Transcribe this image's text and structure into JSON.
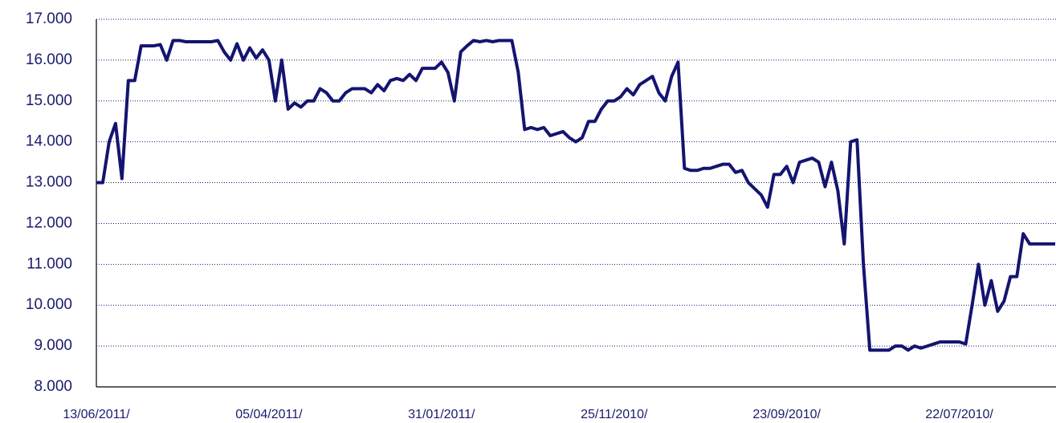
{
  "chart_data": {
    "type": "line",
    "categories": [
      "13/06/2011/",
      null,
      null,
      null,
      null,
      null,
      null,
      null,
      null,
      null,
      null,
      null,
      null,
      null,
      null,
      null,
      null,
      null,
      null,
      null,
      null,
      null,
      null,
      null,
      null,
      null,
      null,
      "05/04/2011/",
      null,
      null,
      null,
      null,
      null,
      null,
      null,
      null,
      null,
      null,
      null,
      null,
      null,
      null,
      null,
      null,
      null,
      null,
      null,
      null,
      null,
      null,
      null,
      null,
      null,
      null,
      "31/01/2011/",
      null,
      null,
      null,
      null,
      null,
      null,
      null,
      null,
      null,
      null,
      null,
      null,
      null,
      null,
      null,
      null,
      null,
      null,
      null,
      null,
      null,
      null,
      null,
      null,
      null,
      null,
      "25/11/2010/",
      null,
      null,
      null,
      null,
      null,
      null,
      null,
      null,
      null,
      null,
      null,
      null,
      null,
      null,
      null,
      null,
      null,
      null,
      null,
      null,
      null,
      null,
      null,
      null,
      null,
      null,
      "23/09/2010/",
      null,
      null,
      null,
      null,
      null,
      null,
      null,
      null,
      null,
      null,
      null,
      null,
      null,
      null,
      null,
      null,
      null,
      null,
      null,
      null,
      null,
      null,
      null,
      null,
      null,
      null,
      "22/07/2010/",
      null,
      null,
      null,
      null,
      null,
      null,
      null,
      null,
      null,
      null,
      null,
      null,
      null,
      null,
      null
    ],
    "series": [
      {
        "color": "#141470",
        "values": [
          13000,
          13000,
          14000,
          14450,
          13100,
          15500,
          15500,
          16350,
          16350,
          16350,
          16380,
          16000,
          16480,
          16480,
          16450,
          16450,
          16450,
          16450,
          16450,
          16480,
          16200,
          16000,
          16400,
          16000,
          16300,
          16050,
          16250,
          16000,
          15000,
          16000,
          14800,
          14950,
          14850,
          15000,
          15000,
          15300,
          15200,
          15000,
          15000,
          15200,
          15300,
          15300,
          15300,
          15200,
          15400,
          15250,
          15500,
          15550,
          15500,
          15650,
          15500,
          15800,
          15800,
          15800,
          15950,
          15700,
          15000,
          16200,
          16350,
          16480,
          16450,
          16480,
          16450,
          16480,
          16480,
          16480,
          15700,
          14300,
          14350,
          14300,
          14350,
          14150,
          14200,
          14250,
          14100,
          14000,
          14100,
          14500,
          14500,
          14800,
          15000,
          15000,
          15100,
          15300,
          15150,
          15400,
          15500,
          15600,
          15200,
          15000,
          15600,
          15950,
          13350,
          13300,
          13300,
          13350,
          13350,
          13400,
          13450,
          13450,
          13250,
          13300,
          13000,
          12850,
          12700,
          12400,
          13200,
          13200,
          13400,
          13000,
          13500,
          13550,
          13600,
          13500,
          12900,
          13500,
          12800,
          11500,
          14000,
          14050,
          11000,
          8900,
          8900,
          8900,
          8900,
          9000,
          9000,
          8900,
          9000,
          8950,
          9000,
          9050,
          9100,
          9100,
          9100,
          9100,
          9050,
          10000,
          11000,
          10000,
          10600,
          9850,
          10100,
          10700,
          10700,
          11750,
          11500,
          11500,
          11500,
          11500,
          11500
        ]
      }
    ],
    "ylim": [
      8000,
      17000
    ],
    "yticks": [
      {
        "value": 8000,
        "label": "8.000"
      },
      {
        "value": 9000,
        "label": "9.000"
      },
      {
        "value": 10000,
        "label": "10.000"
      },
      {
        "value": 11000,
        "label": "11.000"
      },
      {
        "value": 12000,
        "label": "12.000"
      },
      {
        "value": 13000,
        "label": "13.000"
      },
      {
        "value": 14000,
        "label": "14.000"
      },
      {
        "value": 15000,
        "label": "15.000"
      },
      {
        "value": 16000,
        "label": "16.000"
      },
      {
        "value": 17000,
        "label": "17.000"
      }
    ],
    "grid": true
  }
}
